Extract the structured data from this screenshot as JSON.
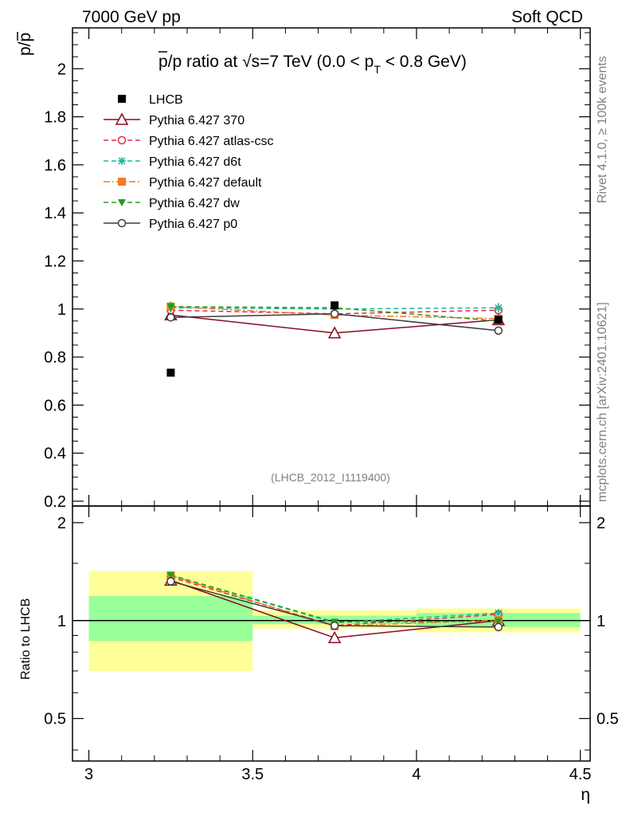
{
  "header": {
    "left": "7000 GeV pp",
    "right": "Soft QCD"
  },
  "side_text": {
    "rivet": "Rivet 4.1.0, ≥ 100k events",
    "mcplots": "mcplots.cern.ch [arXiv:2401.10621]"
  },
  "chart_data": [
    {
      "type": "scatter",
      "panel": "main",
      "title_parts": {
        "prefix": "p/p ratio at ",
        "sqrt": "√s",
        "energy": "=7 TeV (0.0 < p",
        "sub": "T",
        "suffix": " < 0.8 GeV)"
      },
      "ylabel": "p/p",
      "xlabel": "η",
      "xlim": [
        2.95,
        4.53
      ],
      "ylim": [
        0.18,
        2.17
      ],
      "yticks": [
        0.2,
        0.4,
        0.6,
        0.8,
        1,
        1.2,
        1.4,
        1.6,
        1.8,
        2
      ],
      "ytick_labels": [
        "0.2",
        "0.4",
        "0.6",
        "0.8",
        "1",
        "1.2",
        "1.4",
        "1.6",
        "1.8",
        "2"
      ],
      "xticks": [
        3,
        3.5,
        4,
        4.5
      ],
      "xtick_labels": [
        "3",
        "3.5",
        "4",
        "4.5"
      ],
      "analysis_id": "(LHCB_2012_I1119400)",
      "x": [
        3.25,
        3.75,
        4.25
      ],
      "series": [
        {
          "name": "LHCB",
          "values": [
            0.735,
            1.015,
            0.955
          ],
          "errors": [
            0.005,
            0.01,
            0.01
          ],
          "color": "#000000",
          "marker": "square-filled",
          "line": "none"
        },
        {
          "name": "Pythia 6.427 370",
          "values": [
            0.975,
            0.9,
            0.955
          ],
          "errors": [
            0.015,
            0.015,
            0.015
          ],
          "color": "#8b0a1e",
          "marker": "triangle-open",
          "line": "solid"
        },
        {
          "name": "Pythia 6.427 atlas-csc",
          "values": [
            0.995,
            0.98,
            0.995
          ],
          "errors": [
            0.015,
            0.015,
            0.015
          ],
          "color": "#e8274b",
          "marker": "circle-open",
          "line": "dashed"
        },
        {
          "name": "Pythia 6.427 d6t",
          "values": [
            1.005,
            1.0,
            1.005
          ],
          "errors": [
            0.02,
            0.02,
            0.02
          ],
          "color": "#1ab896",
          "marker": "star",
          "line": "dashed"
        },
        {
          "name": "Pythia 6.427 default",
          "values": [
            1.01,
            0.975,
            0.96
          ],
          "errors": [
            0.015,
            0.015,
            0.015
          ],
          "color": "#f47a21",
          "marker": "square-filled",
          "line": "dashdot"
        },
        {
          "name": "Pythia 6.427 dw",
          "values": [
            1.01,
            1.005,
            0.95
          ],
          "errors": [
            0.02,
            0.015,
            0.015
          ],
          "color": "#1f9e1f",
          "marker": "triangle-down-filled",
          "line": "dashed"
        },
        {
          "name": "Pythia 6.427 p0",
          "values": [
            0.965,
            0.98,
            0.91
          ],
          "errors": [
            0.015,
            0.015,
            0.015
          ],
          "color": "#3c3c3c",
          "marker": "circle-open",
          "line": "solid"
        }
      ]
    },
    {
      "type": "scatter",
      "panel": "ratio",
      "ylabel": "Ratio to LHCB",
      "xlabel": "η",
      "scale": "log",
      "xlim": [
        2.95,
        4.53
      ],
      "ylim": [
        0.37,
        2.25
      ],
      "yticks": [
        0.5,
        1,
        2
      ],
      "ytick_labels": [
        "0.5",
        "1",
        "2"
      ],
      "x": [
        3.25,
        3.75,
        4.25
      ],
      "bands": [
        {
          "xmin": 3.0,
          "xmax": 3.5,
          "inner": [
            0.865,
            1.19
          ],
          "outer": [
            0.7,
            1.42
          ]
        },
        {
          "xmin": 3.5,
          "xmax": 4.0,
          "inner": [
            0.975,
            1.035
          ],
          "outer": [
            0.945,
            1.075
          ]
        },
        {
          "xmin": 4.0,
          "xmax": 4.5,
          "inner": [
            0.955,
            1.055
          ],
          "outer": [
            0.92,
            1.09
          ]
        }
      ],
      "series": [
        {
          "name": "Pythia 6.427 370",
          "values": [
            1.33,
            0.885,
            1.0
          ],
          "color": "#8b0a1e"
        },
        {
          "name": "Pythia 6.427 atlas-csc",
          "values": [
            1.36,
            0.965,
            1.045
          ],
          "color": "#e8274b"
        },
        {
          "name": "Pythia 6.427 d6t",
          "values": [
            1.375,
            0.985,
            1.055
          ],
          "color": "#1ab896"
        },
        {
          "name": "Pythia 6.427 default",
          "values": [
            1.375,
            0.96,
            1.005
          ],
          "color": "#f47a21"
        },
        {
          "name": "Pythia 6.427 dw",
          "values": [
            1.38,
            0.99,
            0.995
          ],
          "color": "#1f9e1f"
        },
        {
          "name": "Pythia 6.427 p0",
          "values": [
            1.32,
            0.965,
            0.955
          ],
          "color": "#3c3c3c"
        }
      ]
    }
  ]
}
